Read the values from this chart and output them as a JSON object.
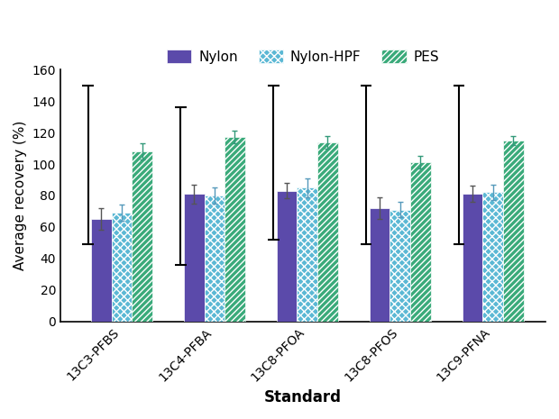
{
  "categories": [
    "13C3-PFBS",
    "13C4-PFBA",
    "13C8-PFOA",
    "13C8-PFOS",
    "13C9-PFNA"
  ],
  "nylon": [
    65,
    81,
    83,
    72,
    81
  ],
  "nylon_hpf": [
    69,
    80,
    85,
    71,
    82
  ],
  "pes": [
    108,
    117,
    114,
    101,
    115
  ],
  "nylon_err": [
    7,
    6,
    5,
    7,
    5
  ],
  "nylon_hpf_err": [
    5,
    5,
    6,
    5,
    5
  ],
  "pes_err": [
    5,
    4,
    4,
    4,
    3
  ],
  "bracket_bottoms": [
    49,
    36,
    52,
    49,
    49
  ],
  "bracket_tops": [
    150,
    136,
    150,
    150,
    150
  ],
  "nylon_color": "#5b4aaa",
  "nylon_hpf_color": "#5bb8d4",
  "pes_color": "#3aaa7a",
  "ylabel": "Average recovery (%)",
  "xlabel": "Standard",
  "ylim": [
    0,
    160
  ],
  "yticks": [
    0,
    20,
    40,
    60,
    80,
    100,
    120,
    140,
    160
  ],
  "bar_width": 0.22,
  "legend_labels": [
    "Nylon",
    "Nylon-HPF",
    "PES"
  ]
}
